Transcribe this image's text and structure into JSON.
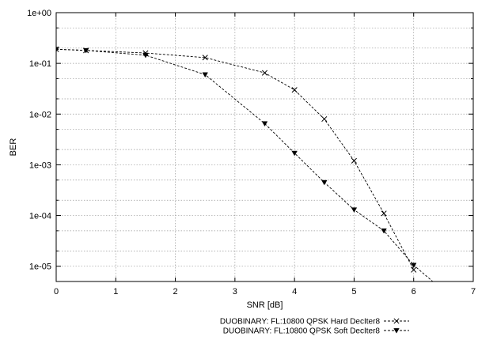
{
  "chart_data": {
    "type": "line",
    "title": "",
    "xlabel": "SNR [dB]",
    "ylabel": "BER",
    "xlim": [
      0,
      7
    ],
    "ylim": [
      5e-06,
      1
    ],
    "yscale": "log",
    "grid": true,
    "legend_position": "bottom-center",
    "x_ticks": [
      "0",
      "1",
      "2",
      "3",
      "4",
      "5",
      "6",
      "7"
    ],
    "y_ticks": [
      "1e-05",
      "1e-04",
      "1e-03",
      "1e-02",
      "1e-01",
      "1e+00"
    ],
    "series": [
      {
        "name": "DUOBINARY: FL:10800 QPSK Hard DecIter8",
        "marker": "x",
        "line_style": "dashed",
        "color": "#000000",
        "x": [
          0,
          0.5,
          1.5,
          2.5,
          3.5,
          4,
          4.5,
          5,
          5.5,
          6
        ],
        "y": [
          0.19,
          0.18,
          0.16,
          0.13,
          0.065,
          0.03,
          0.008,
          0.0012,
          0.00011,
          8.5e-06
        ]
      },
      {
        "name": "DUOBINARY: FL:10800 QPSK Soft DecIter8",
        "marker": "triangle-down",
        "line_style": "dashed",
        "color": "#000000",
        "x": [
          0,
          0.5,
          1.5,
          2.5,
          3.5,
          4,
          4.5,
          5,
          5.5,
          6,
          6.5
        ],
        "y": [
          0.19,
          0.18,
          0.145,
          0.06,
          0.0065,
          0.0017,
          0.00045,
          0.00013,
          5e-05,
          1.05e-05,
          3.3e-06
        ]
      }
    ]
  }
}
